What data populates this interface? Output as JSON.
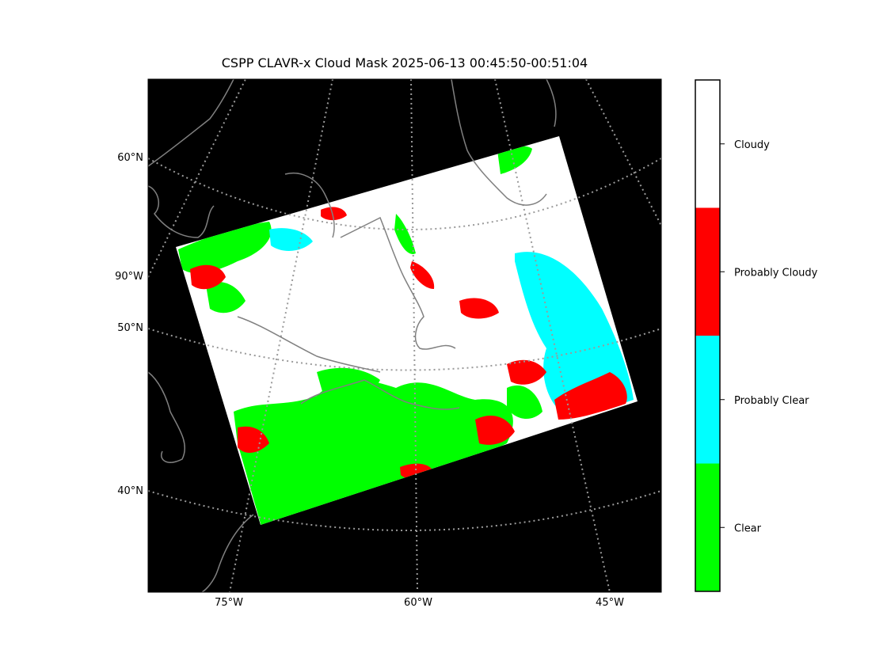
{
  "title": "CSPP CLAVR-x Cloud Mask 2025-06-13 00:45:50-00:51:04",
  "map": {
    "projection": "conic",
    "background_color": "#000000",
    "coastline_color": "#808080",
    "graticule_color": "#9a9a9a",
    "lat_labels": [
      "60°N",
      "90°W",
      "50°N",
      "40°N"
    ],
    "lon_labels": [
      "75°W",
      "60°W",
      "45°W"
    ]
  },
  "colorbar": {
    "categories": [
      {
        "label": "Cloudy",
        "color": "#ffffff"
      },
      {
        "label": "Probably Cloudy",
        "color": "#ff0000"
      },
      {
        "label": "Probably Clear",
        "color": "#00ffff"
      },
      {
        "label": "Clear",
        "color": "#00ff00"
      }
    ]
  }
}
